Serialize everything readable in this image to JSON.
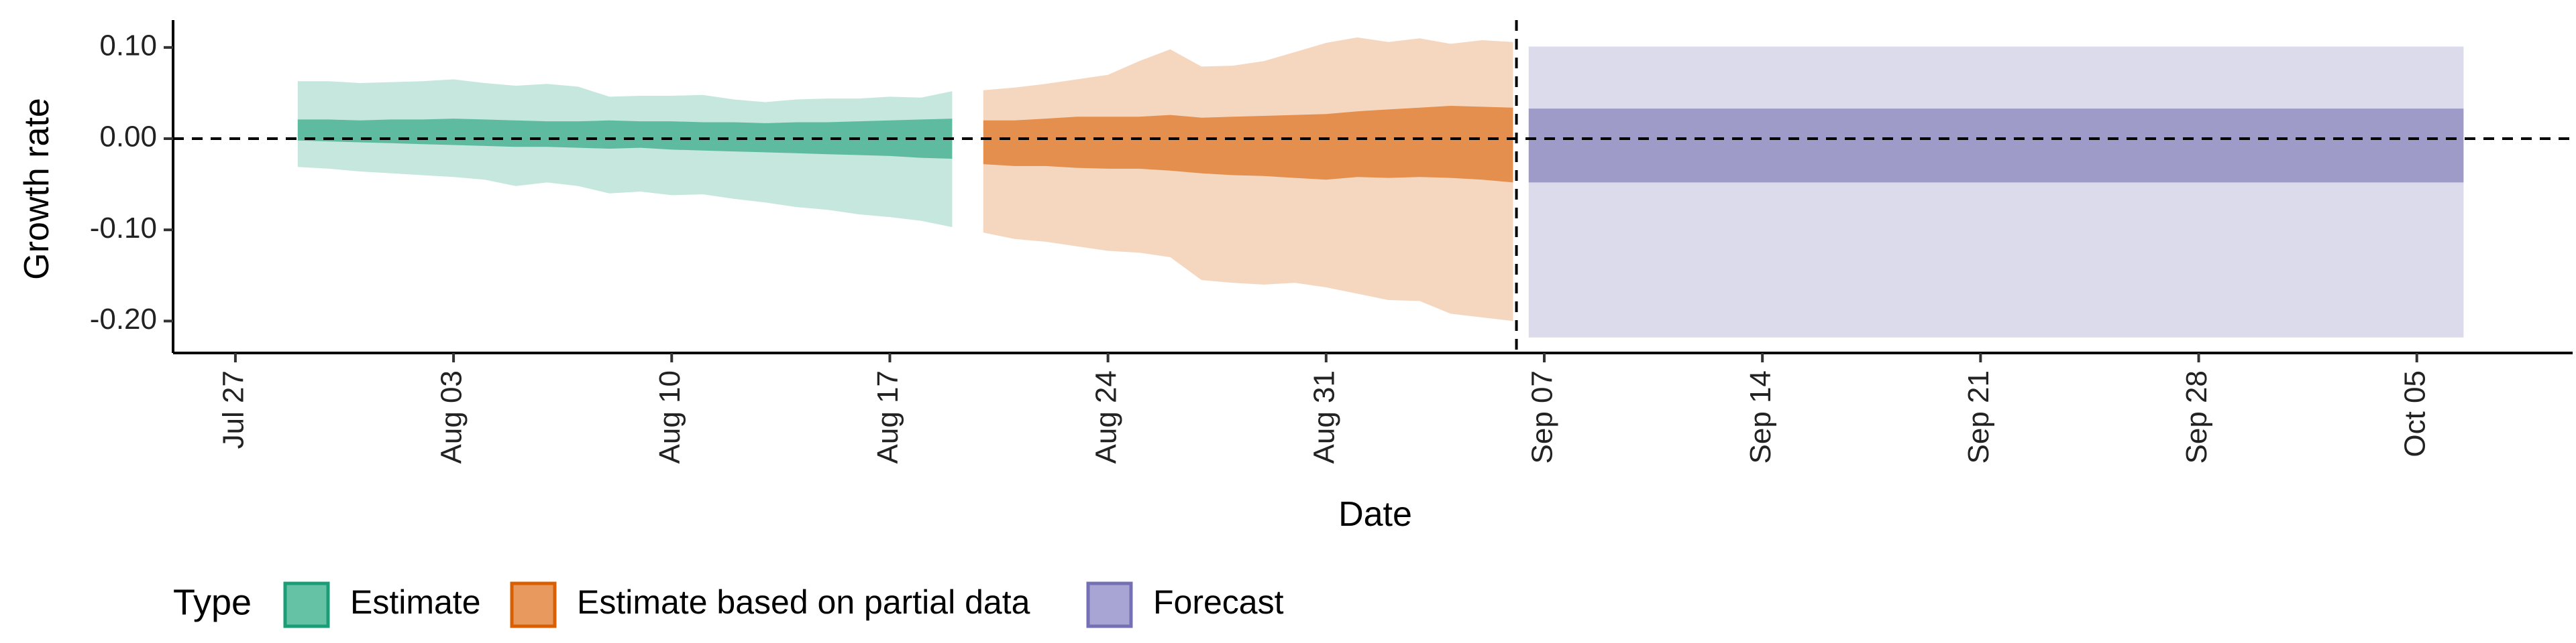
{
  "chart_data": {
    "type": "area",
    "xlabel": "Date",
    "ylabel": "Growth rate",
    "x_axis": {
      "type": "date",
      "range": [
        "2020-07-25",
        "2020-10-10"
      ],
      "ticks": [
        {
          "date": "2020-07-27",
          "label": "Jul 27"
        },
        {
          "date": "2020-08-03",
          "label": "Aug 03"
        },
        {
          "date": "2020-08-10",
          "label": "Aug 10"
        },
        {
          "date": "2020-08-17",
          "label": "Aug 17"
        },
        {
          "date": "2020-08-24",
          "label": "Aug 24"
        },
        {
          "date": "2020-08-31",
          "label": "Aug 31"
        },
        {
          "date": "2020-09-07",
          "label": "Sep 07"
        },
        {
          "date": "2020-09-14",
          "label": "Sep 14"
        },
        {
          "date": "2020-09-21",
          "label": "Sep 21"
        },
        {
          "date": "2020-09-28",
          "label": "Sep 28"
        },
        {
          "date": "2020-10-05",
          "label": "Oct 05"
        }
      ]
    },
    "y_axis": {
      "range": [
        -0.235,
        0.13
      ],
      "ticks": [
        {
          "value": 0.1,
          "label": "0.10"
        },
        {
          "value": 0.0,
          "label": "0.00"
        },
        {
          "value": -0.1,
          "label": "-0.10"
        },
        {
          "value": -0.2,
          "label": "-0.20"
        }
      ]
    },
    "reference_lines": {
      "horizontal_y": 0.0,
      "vertical_date": "2020-09-06"
    },
    "grid": false,
    "legend": {
      "title": "Type",
      "placement": "bottom",
      "entries": [
        {
          "label": "Estimate",
          "fill": "#66c2a5",
          "border": "#1b9e77"
        },
        {
          "label": "Estimate based on partial data",
          "fill": "#e89a5e",
          "border": "#d95f02"
        },
        {
          "label": "Forecast",
          "fill": "#a8a5d4",
          "border": "#7570b3"
        }
      ]
    },
    "series": [
      {
        "name": "Estimate",
        "color": "#1b9e77",
        "x": [
          "2020-07-29",
          "2020-07-30",
          "2020-07-31",
          "2020-08-01",
          "2020-08-02",
          "2020-08-03",
          "2020-08-04",
          "2020-08-05",
          "2020-08-06",
          "2020-08-07",
          "2020-08-08",
          "2020-08-09",
          "2020-08-10",
          "2020-08-11",
          "2020-08-12",
          "2020-08-13",
          "2020-08-14",
          "2020-08-15",
          "2020-08-16",
          "2020-08-17",
          "2020-08-18",
          "2020-08-19"
        ],
        "lower_90": [
          -0.031,
          -0.033,
          -0.036,
          -0.038,
          -0.04,
          -0.042,
          -0.045,
          -0.052,
          -0.048,
          -0.052,
          -0.06,
          -0.058,
          -0.062,
          -0.061,
          -0.066,
          -0.07,
          -0.075,
          -0.078,
          -0.083,
          -0.086,
          -0.09,
          -0.097
        ],
        "upper_90": [
          0.063,
          0.063,
          0.061,
          0.062,
          0.063,
          0.065,
          0.061,
          0.058,
          0.06,
          0.057,
          0.046,
          0.047,
          0.047,
          0.048,
          0.043,
          0.04,
          0.043,
          0.044,
          0.044,
          0.046,
          0.045,
          0.052
        ],
        "lower_50": [
          -0.002,
          -0.003,
          -0.004,
          -0.005,
          -0.006,
          -0.007,
          -0.008,
          -0.009,
          -0.009,
          -0.01,
          -0.011,
          -0.01,
          -0.012,
          -0.013,
          -0.014,
          -0.015,
          -0.016,
          -0.017,
          -0.018,
          -0.019,
          -0.021,
          -0.022
        ],
        "upper_50": [
          0.021,
          0.021,
          0.02,
          0.021,
          0.021,
          0.022,
          0.021,
          0.02,
          0.019,
          0.019,
          0.02,
          0.019,
          0.019,
          0.018,
          0.018,
          0.017,
          0.018,
          0.018,
          0.019,
          0.02,
          0.021,
          0.022
        ]
      },
      {
        "name": "Estimate based on partial data",
        "color": "#d95f02",
        "x": [
          "2020-08-20",
          "2020-08-21",
          "2020-08-22",
          "2020-08-23",
          "2020-08-24",
          "2020-08-25",
          "2020-08-26",
          "2020-08-27",
          "2020-08-28",
          "2020-08-29",
          "2020-08-30",
          "2020-08-31",
          "2020-09-01",
          "2020-09-02",
          "2020-09-03",
          "2020-09-04",
          "2020-09-05",
          "2020-09-06"
        ],
        "lower_90": [
          -0.103,
          -0.11,
          -0.113,
          -0.118,
          -0.123,
          -0.125,
          -0.13,
          -0.155,
          -0.158,
          -0.16,
          -0.158,
          -0.163,
          -0.17,
          -0.177,
          -0.178,
          -0.192,
          -0.196,
          -0.2
        ],
        "upper_90": [
          0.053,
          0.056,
          0.06,
          0.065,
          0.07,
          0.085,
          0.098,
          0.079,
          0.08,
          0.085,
          0.095,
          0.105,
          0.111,
          0.106,
          0.11,
          0.104,
          0.108,
          0.106
        ],
        "lower_50": [
          -0.028,
          -0.03,
          -0.03,
          -0.032,
          -0.033,
          -0.033,
          -0.035,
          -0.038,
          -0.04,
          -0.041,
          -0.043,
          -0.045,
          -0.042,
          -0.043,
          -0.042,
          -0.043,
          -0.045,
          -0.048
        ],
        "upper_50": [
          0.02,
          0.02,
          0.022,
          0.024,
          0.024,
          0.024,
          0.026,
          0.023,
          0.024,
          0.025,
          0.026,
          0.027,
          0.03,
          0.032,
          0.034,
          0.036,
          0.035,
          0.034
        ]
      },
      {
        "name": "Forecast",
        "color": "#7570b3",
        "x": [
          "2020-09-07",
          "2020-10-06"
        ],
        "lower_90": [
          -0.218,
          -0.218
        ],
        "upper_90": [
          0.101,
          0.101
        ],
        "lower_50": [
          -0.048,
          -0.048
        ],
        "upper_50": [
          0.033,
          0.033
        ]
      }
    ]
  }
}
